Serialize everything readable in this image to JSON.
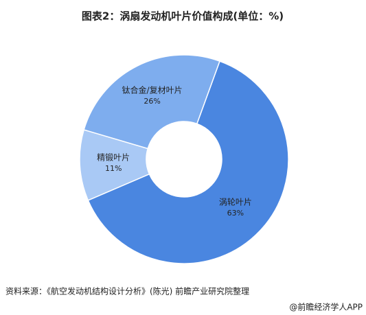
{
  "chart_data": {
    "type": "donut",
    "title": "图表2：涡扇发动机叶片价值构成(单位：%)",
    "categories": [
      "涡轮叶片",
      "精锻叶片",
      "钛合金/复材叶片"
    ],
    "values": [
      63,
      11,
      26
    ],
    "value_labels": [
      "63%",
      "11%",
      "26%"
    ],
    "colors": [
      "#4a86e0",
      "#a9c9f5",
      "#7eadee"
    ],
    "source": "资料来源：《航空发动机结构设计分析》(陈光)  前瞻产业研究院整理",
    "watermark": "@前瞻经济学人APP"
  }
}
